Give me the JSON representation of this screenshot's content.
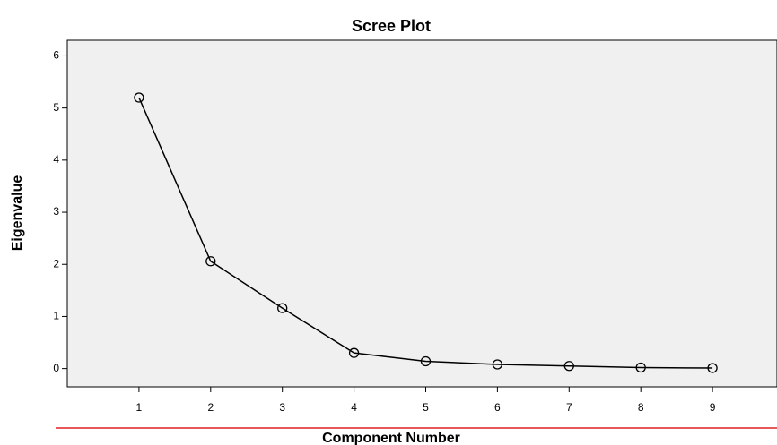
{
  "chart_data": {
    "type": "line",
    "title": "Scree Plot",
    "x_label": "Component Number",
    "y_label": "Eigenvalue",
    "x": [
      1,
      2,
      3,
      4,
      5,
      6,
      7,
      8,
      9
    ],
    "series": [
      {
        "name": "Eigenvalue",
        "color": "#000000",
        "values": [
          5.2,
          2.06,
          1.16,
          0.3,
          0.14,
          0.08,
          0.05,
          0.02,
          0.01
        ]
      }
    ],
    "xlim": [
      0,
      9.9
    ],
    "ylim": [
      -0.35,
      6.3
    ],
    "xticks": [
      1,
      2,
      3,
      4,
      5,
      6,
      7,
      8,
      9
    ],
    "yticks": [
      0,
      1,
      2,
      3,
      4,
      5,
      6
    ],
    "grid": false,
    "marker": "circle"
  }
}
